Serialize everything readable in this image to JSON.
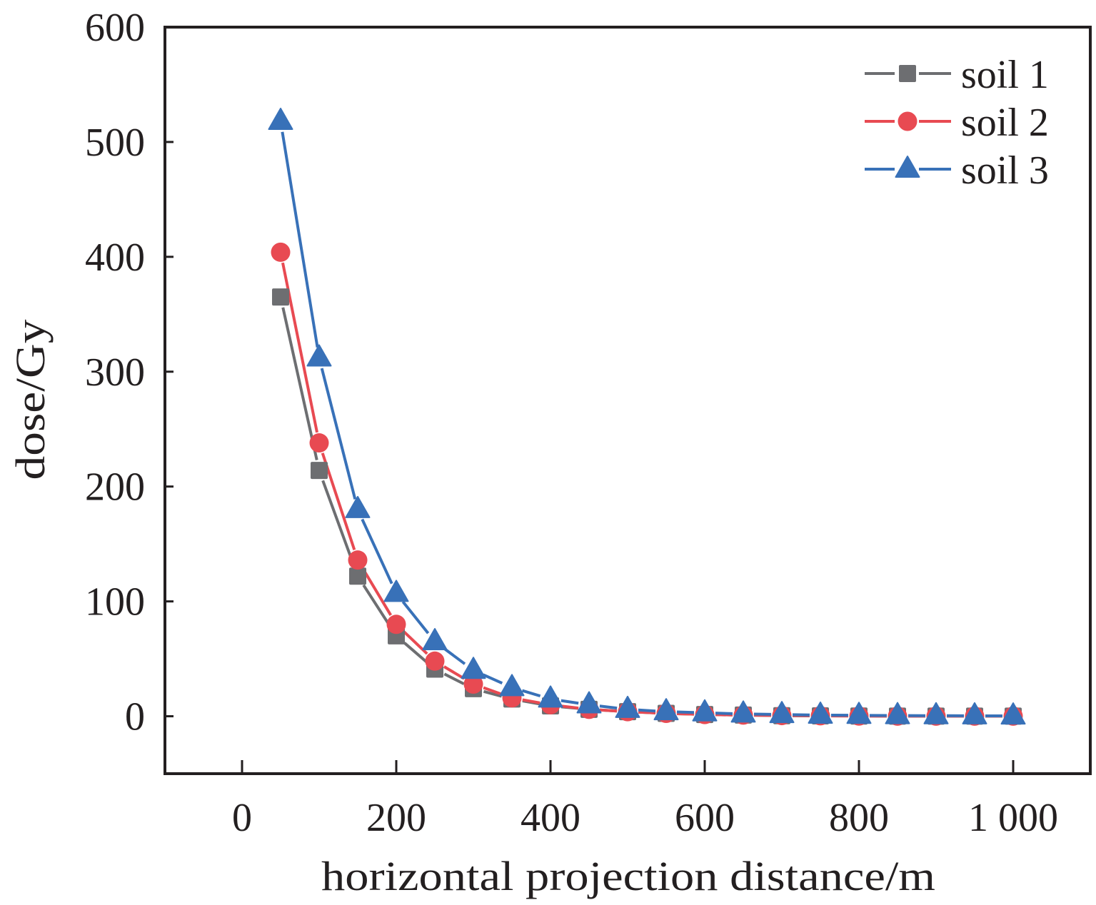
{
  "chart_data": {
    "type": "line",
    "title": "",
    "xlabel": "horizontal projection distance/m",
    "ylabel": "dose/Gy",
    "xlim": [
      -100,
      1100
    ],
    "ylim": [
      -50,
      600
    ],
    "x_ticks": [
      0,
      200,
      400,
      600,
      800,
      1000
    ],
    "x_tick_labels": [
      "0",
      "200",
      "400",
      "600",
      "800",
      "1 000"
    ],
    "y_ticks": [
      0,
      100,
      200,
      300,
      400,
      500,
      600
    ],
    "y_tick_labels": [
      "0",
      "100",
      "200",
      "300",
      "400",
      "500",
      "600"
    ],
    "grid": false,
    "legend_position": "top-right",
    "x": [
      50,
      100,
      150,
      200,
      250,
      300,
      350,
      400,
      450,
      500,
      550,
      600,
      650,
      700,
      750,
      800,
      850,
      900,
      950,
      1000
    ],
    "series": [
      {
        "name": "soil 1",
        "color": "#6d6e71",
        "marker": "square",
        "values": [
          365,
          214,
          122,
          70,
          41,
          24,
          15,
          9,
          6,
          4,
          2.5,
          1.5,
          1,
          0.5,
          0.3,
          0.2,
          0.1,
          0.1,
          0.1,
          0.1
        ]
      },
      {
        "name": "soil 2",
        "color": "#e84a52",
        "marker": "circle",
        "values": [
          404,
          238,
          136,
          80,
          48,
          28,
          16,
          10,
          6,
          4,
          2.5,
          1.5,
          1,
          0.6,
          0.4,
          0.2,
          0.1,
          0.1,
          0.1,
          0.1
        ]
      },
      {
        "name": "soil 3",
        "color": "#3871b8",
        "marker": "triangle",
        "values": [
          518,
          312,
          180,
          107,
          65,
          40,
          25,
          15,
          10,
          6,
          4,
          3,
          2,
          1.5,
          1,
          0.8,
          0.6,
          0.5,
          0.4,
          0.3
        ]
      }
    ]
  }
}
